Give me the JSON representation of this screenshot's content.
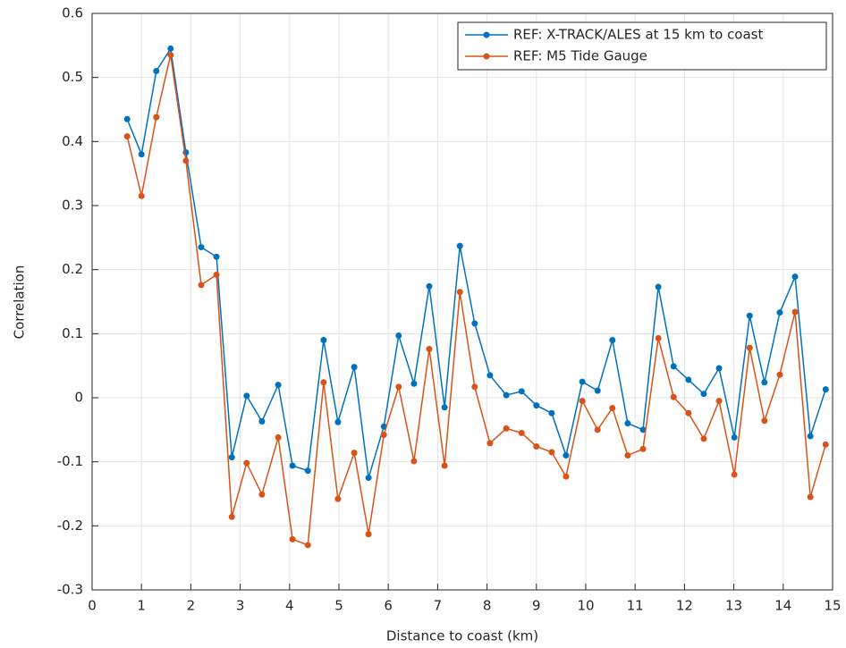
{
  "chart_data": {
    "type": "line",
    "xlabel": "Distance to coast (km)",
    "ylabel": "Correlation",
    "x": [
      0.71,
      1.0,
      1.3,
      1.59,
      1.9,
      2.21,
      2.52,
      2.83,
      3.13,
      3.44,
      3.77,
      4.06,
      4.37,
      4.69,
      4.98,
      5.31,
      5.6,
      5.91,
      6.21,
      6.52,
      6.83,
      7.14,
      7.45,
      7.75,
      8.06,
      8.39,
      8.7,
      9.0,
      9.31,
      9.6,
      9.93,
      10.24,
      10.54,
      10.85,
      11.16,
      11.47,
      11.78,
      12.08,
      12.39,
      12.7,
      13.01,
      13.32,
      13.62,
      13.93,
      14.24,
      14.55,
      14.86
    ],
    "series": [
      {
        "name": "REF: X-TRACK/ALES at 15 km to coast",
        "color": "#0072bd",
        "values": [
          0.435,
          0.38,
          0.51,
          0.545,
          0.383,
          0.235,
          0.22,
          -0.093,
          0.003,
          -0.037,
          0.02,
          -0.106,
          -0.114,
          0.09,
          -0.038,
          0.048,
          -0.125,
          -0.045,
          0.097,
          0.022,
          0.174,
          -0.015,
          0.237,
          0.116,
          0.035,
          0.004,
          0.01,
          -0.012,
          -0.024,
          -0.09,
          0.025,
          0.011,
          0.09,
          -0.04,
          -0.05,
          0.173,
          0.049,
          0.028,
          0.006,
          0.046,
          -0.062,
          0.128,
          0.024,
          0.133,
          0.189,
          -0.06,
          0.013
        ]
      },
      {
        "name": "REF: M5 Tide Gauge",
        "color": "#d95319",
        "values": [
          0.408,
          0.315,
          0.438,
          0.535,
          0.37,
          0.176,
          0.192,
          -0.186,
          -0.102,
          -0.151,
          -0.062,
          -0.221,
          -0.23,
          0.024,
          -0.158,
          -0.086,
          -0.213,
          -0.058,
          0.017,
          -0.099,
          0.076,
          -0.106,
          0.165,
          0.017,
          -0.071,
          -0.048,
          -0.055,
          -0.076,
          -0.085,
          -0.123,
          -0.005,
          -0.05,
          -0.016,
          -0.09,
          -0.08,
          0.093,
          0.001,
          -0.024,
          -0.064,
          -0.005,
          -0.12,
          0.078,
          -0.036,
          0.036,
          0.134,
          -0.155,
          -0.073
        ]
      }
    ],
    "xlim": [
      0,
      15
    ],
    "xticks": [
      0,
      1,
      2,
      3,
      4,
      5,
      6,
      7,
      8,
      9,
      10,
      11,
      12,
      13,
      14,
      15
    ],
    "ylim": [
      -0.3,
      0.6
    ],
    "yticks": [
      -0.3,
      -0.2,
      -0.1,
      0,
      0.1,
      0.2,
      0.3,
      0.4,
      0.5,
      0.6
    ],
    "grid": true,
    "legend": "upper right"
  }
}
